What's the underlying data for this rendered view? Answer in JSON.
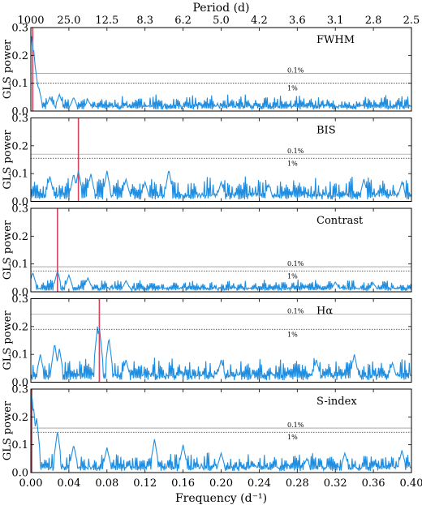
{
  "chart_data": {
    "type": "line",
    "xlabel": "Frequency (d⁻¹)",
    "xlim": [
      0.0,
      0.4
    ],
    "x_ticks": [
      "0.00",
      "0.04",
      "0.08",
      "0.12",
      "0.16",
      "0.20",
      "0.24",
      "0.28",
      "0.32",
      "0.36",
      "0.40"
    ],
    "top_axis": {
      "label": "Period (d)",
      "ticks": [
        "1000",
        "25.0",
        "12.5",
        "8.3",
        "6.2",
        "5.0",
        "4.2",
        "3.6",
        "3.1",
        "2.8",
        "2.5"
      ]
    },
    "ylabel": "GLS power",
    "ylim": [
      0,
      0.3
    ],
    "y_ticks": [
      "0.0",
      "0.1",
      "0.2",
      "0.3"
    ],
    "fap_labels": [
      "0.1%",
      "1%"
    ],
    "colors": {
      "periodogram": "#1f8ee0",
      "marker": "#d2455f",
      "fap": "#555555"
    },
    "panels": [
      {
        "name": "FWHM",
        "marker_frequency": 0.002,
        "fap_0_1": 0.135,
        "fap_1": 0.1,
        "peaks": [
          [
            0.001,
            0.28
          ],
          [
            0.003,
            0.22
          ],
          [
            0.005,
            0.15
          ],
          [
            0.008,
            0.09
          ],
          [
            0.02,
            0.05
          ],
          [
            0.03,
            0.06
          ],
          [
            0.045,
            0.05
          ],
          [
            0.06,
            0.04
          ]
        ],
        "base": 0.015,
        "noise": 0.045,
        "seed": 11
      },
      {
        "name": "BIS",
        "marker_frequency": 0.05,
        "fap_0_1": 0.17,
        "fap_1": 0.155,
        "peaks": [
          [
            0.02,
            0.09
          ],
          [
            0.045,
            0.1
          ],
          [
            0.05,
            0.11
          ],
          [
            0.063,
            0.1
          ],
          [
            0.08,
            0.11
          ],
          [
            0.1,
            0.08
          ],
          [
            0.12,
            0.07
          ],
          [
            0.145,
            0.115
          ],
          [
            0.2,
            0.07
          ],
          [
            0.25,
            0.06
          ],
          [
            0.35,
            0.08
          ],
          [
            0.39,
            0.07
          ]
        ],
        "base": 0.02,
        "noise": 0.07,
        "seed": 23
      },
      {
        "name": "Contrast",
        "marker_frequency": 0.028,
        "fap_0_1": 0.09,
        "fap_1": 0.075,
        "peaks": [
          [
            0.002,
            0.07
          ],
          [
            0.028,
            0.075
          ],
          [
            0.04,
            0.06
          ],
          [
            0.06,
            0.05
          ],
          [
            0.1,
            0.04
          ],
          [
            0.32,
            0.035
          ],
          [
            0.36,
            0.03
          ]
        ],
        "base": 0.01,
        "noise": 0.035,
        "seed": 37
      },
      {
        "name": "Hα",
        "marker_frequency": 0.072,
        "fap_0_1": 0.245,
        "fap_1": 0.19,
        "peaks": [
          [
            0.01,
            0.1
          ],
          [
            0.025,
            0.14
          ],
          [
            0.03,
            0.12
          ],
          [
            0.07,
            0.2
          ],
          [
            0.072,
            0.2
          ],
          [
            0.082,
            0.16
          ],
          [
            0.1,
            0.08
          ],
          [
            0.2,
            0.08
          ],
          [
            0.3,
            0.08
          ],
          [
            0.34,
            0.1
          ],
          [
            0.38,
            0.07
          ]
        ],
        "base": 0.02,
        "noise": 0.07,
        "seed": 53
      },
      {
        "name": "S-index",
        "marker_frequency": 0.001,
        "fap_0_1": 0.16,
        "fap_1": 0.145,
        "peaks": [
          [
            0.001,
            0.29
          ],
          [
            0.003,
            0.23
          ],
          [
            0.006,
            0.2
          ],
          [
            0.028,
            0.15
          ],
          [
            0.045,
            0.1
          ],
          [
            0.08,
            0.09
          ],
          [
            0.13,
            0.12
          ],
          [
            0.16,
            0.1
          ],
          [
            0.2,
            0.07
          ],
          [
            0.29,
            0.05
          ],
          [
            0.33,
            0.07
          ],
          [
            0.39,
            0.08
          ]
        ],
        "base": 0.015,
        "noise": 0.06,
        "seed": 71
      }
    ]
  }
}
